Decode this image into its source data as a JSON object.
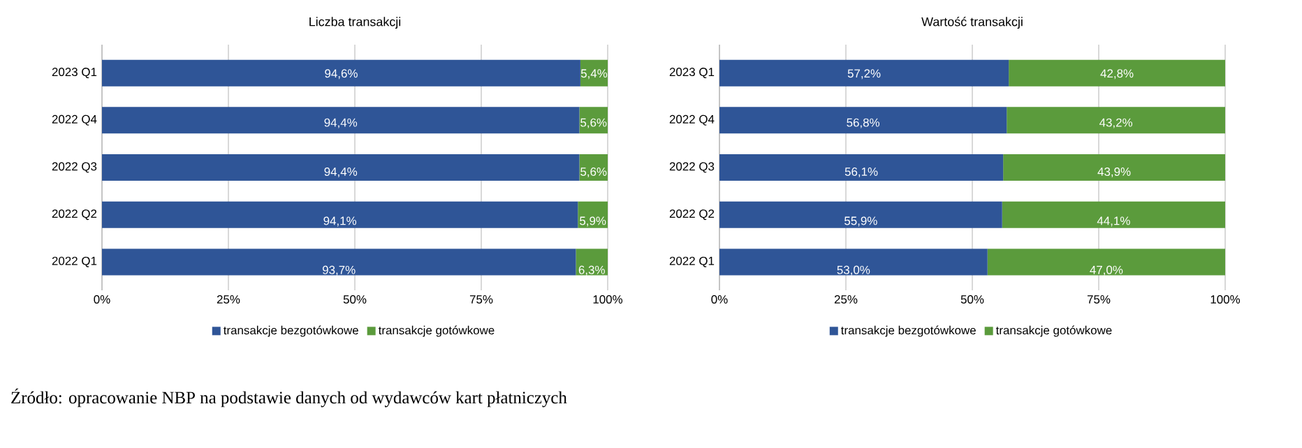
{
  "chart_data": [
    {
      "type": "bar",
      "orientation": "horizontal",
      "stacked": true,
      "title": "Liczba transakcji",
      "categories": [
        "2023 Q1",
        "2022 Q4",
        "2022 Q3",
        "2022 Q2",
        "2022 Q1"
      ],
      "series": [
        {
          "name": "transakcje bezgotówkowe",
          "color": "#2f5597",
          "values": [
            94.6,
            94.4,
            94.4,
            94.1,
            93.7
          ],
          "value_labels": [
            "94,6%",
            "94,4%",
            "94,4%",
            "94,1%",
            "93,7%"
          ]
        },
        {
          "name": "transakcje gotówkowe",
          "color": "#5b9b3c",
          "values": [
            5.4,
            5.6,
            5.6,
            5.9,
            6.3
          ],
          "value_labels": [
            "5,4%",
            "5,6%",
            "5,6%",
            "5,9%",
            "6,3%"
          ]
        }
      ],
      "xlim": [
        0,
        100
      ],
      "xticks": [
        {
          "value": 0,
          "label": "0%"
        },
        {
          "value": 25,
          "label": "25%"
        },
        {
          "value": 50,
          "label": "50%"
        },
        {
          "value": 75,
          "label": "75%"
        },
        {
          "value": 100,
          "label": "100%"
        }
      ],
      "grid": "x",
      "legend": "bottom",
      "annotations": [
        "Źródło: opracowanie NBP na podstawie danych od wydawców kart płatniczych"
      ]
    },
    {
      "type": "bar",
      "orientation": "horizontal",
      "stacked": true,
      "title": "Wartość transakcji",
      "categories": [
        "2023 Q1",
        "2022 Q4",
        "2022 Q3",
        "2022 Q2",
        "2022 Q1"
      ],
      "series": [
        {
          "name": "transakcje bezgotówkowe",
          "color": "#2f5597",
          "values": [
            57.2,
            56.8,
            56.1,
            55.9,
            53.0
          ],
          "value_labels": [
            "57,2%",
            "56,8%",
            "56,1%",
            "55,9%",
            "53,0%"
          ]
        },
        {
          "name": "transakcje gotówkowe",
          "color": "#5b9b3c",
          "values": [
            42.8,
            43.2,
            43.9,
            44.1,
            47.0
          ],
          "value_labels": [
            "42,8%",
            "43,2%",
            "43,9%",
            "44,1%",
            "47,0%"
          ]
        }
      ],
      "xlim": [
        0,
        100
      ],
      "xticks": [
        {
          "value": 0,
          "label": "0%"
        },
        {
          "value": 25,
          "label": "25%"
        },
        {
          "value": 50,
          "label": "50%"
        },
        {
          "value": 75,
          "label": "75%"
        },
        {
          "value": 100,
          "label": "100%"
        }
      ],
      "grid": "x",
      "legend": "bottom"
    }
  ]
}
